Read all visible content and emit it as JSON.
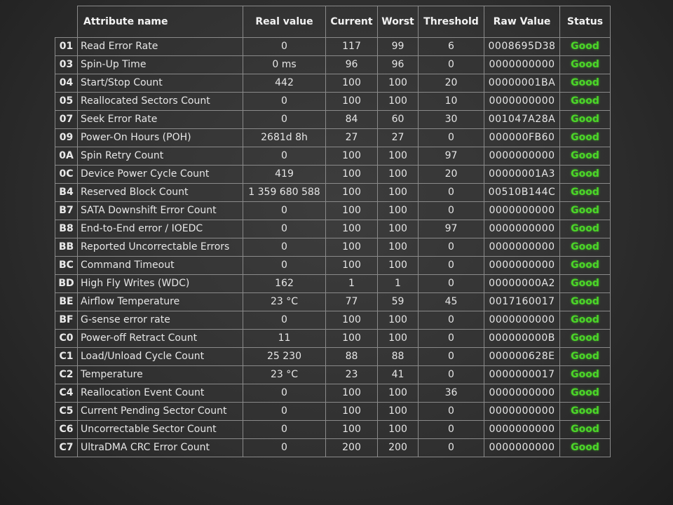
{
  "header": {
    "attribute_name": "Attribute name",
    "real_value": "Real value",
    "current": "Current",
    "worst": "Worst",
    "threshold": "Threshold",
    "raw_value": "Raw Value",
    "status": "Status"
  },
  "colors": {
    "status_good": "#4bd628",
    "background": "#2c2c2c",
    "grid": "#8a8a8a"
  },
  "rows": [
    {
      "id": "01",
      "name": "Read Error Rate",
      "real": "0",
      "current": "117",
      "worst": "99",
      "threshold": "6",
      "raw": "0008695D38",
      "status": "Good"
    },
    {
      "id": "03",
      "name": "Spin-Up Time",
      "real": "0 ms",
      "current": "96",
      "worst": "96",
      "threshold": "0",
      "raw": "0000000000",
      "status": "Good"
    },
    {
      "id": "04",
      "name": "Start/Stop Count",
      "real": "442",
      "current": "100",
      "worst": "100",
      "threshold": "20",
      "raw": "00000001BA",
      "status": "Good"
    },
    {
      "id": "05",
      "name": "Reallocated Sectors Count",
      "real": "0",
      "current": "100",
      "worst": "100",
      "threshold": "10",
      "raw": "0000000000",
      "status": "Good"
    },
    {
      "id": "07",
      "name": "Seek Error Rate",
      "real": "0",
      "current": "84",
      "worst": "60",
      "threshold": "30",
      "raw": "001047A28A",
      "status": "Good"
    },
    {
      "id": "09",
      "name": "Power-On Hours (POH)",
      "real": "2681d 8h",
      "current": "27",
      "worst": "27",
      "threshold": "0",
      "raw": "000000FB60",
      "status": "Good"
    },
    {
      "id": "0A",
      "name": "Spin Retry Count",
      "real": "0",
      "current": "100",
      "worst": "100",
      "threshold": "97",
      "raw": "0000000000",
      "status": "Good"
    },
    {
      "id": "0C",
      "name": "Device Power Cycle Count",
      "real": "419",
      "current": "100",
      "worst": "100",
      "threshold": "20",
      "raw": "00000001A3",
      "status": "Good"
    },
    {
      "id": "B4",
      "name": "Reserved Block Count",
      "real": "1 359 680 588",
      "current": "100",
      "worst": "100",
      "threshold": "0",
      "raw": "00510B144C",
      "status": "Good"
    },
    {
      "id": "B7",
      "name": "SATA Downshift Error Count",
      "real": "0",
      "current": "100",
      "worst": "100",
      "threshold": "0",
      "raw": "0000000000",
      "status": "Good"
    },
    {
      "id": "B8",
      "name": "End-to-End error / IOEDC",
      "real": "0",
      "current": "100",
      "worst": "100",
      "threshold": "97",
      "raw": "0000000000",
      "status": "Good"
    },
    {
      "id": "BB",
      "name": "Reported Uncorrectable Errors",
      "real": "0",
      "current": "100",
      "worst": "100",
      "threshold": "0",
      "raw": "0000000000",
      "status": "Good"
    },
    {
      "id": "BC",
      "name": "Command Timeout",
      "real": "0",
      "current": "100",
      "worst": "100",
      "threshold": "0",
      "raw": "0000000000",
      "status": "Good"
    },
    {
      "id": "BD",
      "name": "High Fly Writes (WDC)",
      "real": "162",
      "current": "1",
      "worst": "1",
      "threshold": "0",
      "raw": "00000000A2",
      "status": "Good"
    },
    {
      "id": "BE",
      "name": "Airflow Temperature",
      "real": "23 °C",
      "current": "77",
      "worst": "59",
      "threshold": "45",
      "raw": "0017160017",
      "status": "Good"
    },
    {
      "id": "BF",
      "name": "G-sense error rate",
      "real": "0",
      "current": "100",
      "worst": "100",
      "threshold": "0",
      "raw": "0000000000",
      "status": "Good"
    },
    {
      "id": "C0",
      "name": "Power-off Retract Count",
      "real": "11",
      "current": "100",
      "worst": "100",
      "threshold": "0",
      "raw": "000000000B",
      "status": "Good"
    },
    {
      "id": "C1",
      "name": "Load/Unload Cycle Count",
      "real": "25 230",
      "current": "88",
      "worst": "88",
      "threshold": "0",
      "raw": "000000628E",
      "status": "Good"
    },
    {
      "id": "C2",
      "name": "Temperature",
      "real": "23 °C",
      "current": "23",
      "worst": "41",
      "threshold": "0",
      "raw": "0000000017",
      "status": "Good"
    },
    {
      "id": "C4",
      "name": "Reallocation Event Count",
      "real": "0",
      "current": "100",
      "worst": "100",
      "threshold": "36",
      "raw": "0000000000",
      "status": "Good"
    },
    {
      "id": "C5",
      "name": "Current Pending Sector Count",
      "real": "0",
      "current": "100",
      "worst": "100",
      "threshold": "0",
      "raw": "0000000000",
      "status": "Good"
    },
    {
      "id": "C6",
      "name": "Uncorrectable Sector Count",
      "real": "0",
      "current": "100",
      "worst": "100",
      "threshold": "0",
      "raw": "0000000000",
      "status": "Good"
    },
    {
      "id": "C7",
      "name": "UltraDMA CRC Error Count",
      "real": "0",
      "current": "200",
      "worst": "200",
      "threshold": "0",
      "raw": "0000000000",
      "status": "Good"
    }
  ]
}
